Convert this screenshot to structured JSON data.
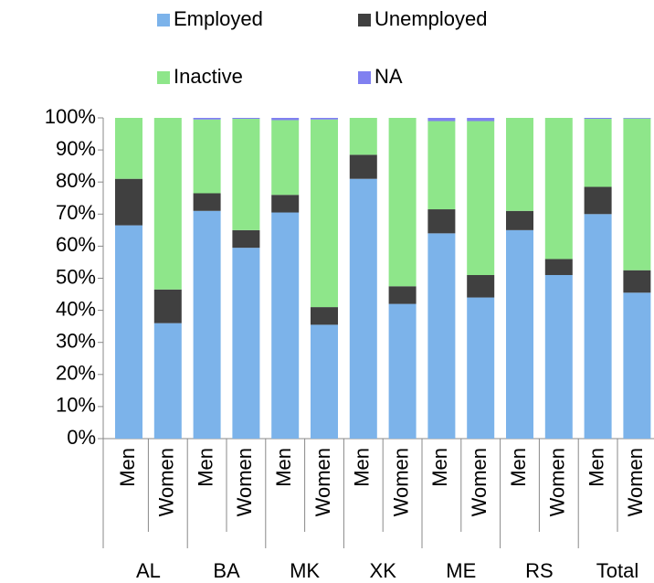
{
  "chart_data": {
    "type": "stacked_bar",
    "categories": [
      "Men",
      "Women",
      "Men",
      "Women",
      "Men",
      "Women",
      "Men",
      "Women",
      "Men",
      "Women",
      "Men",
      "Women",
      "Men",
      "Women"
    ],
    "groups": [
      "AL",
      "BA",
      "MK",
      "XK",
      "ME",
      "RS",
      "Total"
    ],
    "series": [
      {
        "name": "Employed",
        "color": "#7cb3ea",
        "values": [
          66.5,
          36,
          71,
          59.5,
          70.5,
          35.5,
          81,
          42,
          64,
          44,
          65,
          51,
          70,
          45.5
        ]
      },
      {
        "name": "Unemployed",
        "color": "#404040",
        "values": [
          14.5,
          10.5,
          5.5,
          5.5,
          5.5,
          5.5,
          7.5,
          5.5,
          7.5,
          7,
          6,
          5,
          8.5,
          7
        ]
      },
      {
        "name": "Inactive",
        "color": "#8ee68a",
        "values": [
          19,
          53.5,
          23,
          34.7,
          23.3,
          58.5,
          11.5,
          52.5,
          27.5,
          48,
          29,
          44,
          21.2,
          47.3
        ]
      },
      {
        "name": "NA",
        "color": "#8080f0",
        "values": [
          0,
          0,
          0.5,
          0.3,
          0.7,
          0.5,
          0,
          0,
          1,
          1,
          0,
          0,
          0.3,
          0.2
        ]
      }
    ],
    "ylim": [
      0,
      100
    ],
    "yticks": [
      {
        "value": 0,
        "label": "0%"
      },
      {
        "value": 10,
        "label": "10%"
      },
      {
        "value": 20,
        "label": "20%"
      },
      {
        "value": 30,
        "label": "30%"
      },
      {
        "value": 40,
        "label": "40%"
      },
      {
        "value": 50,
        "label": "50%"
      },
      {
        "value": 60,
        "label": "60%"
      },
      {
        "value": 70,
        "label": "70%"
      },
      {
        "value": 80,
        "label": "80%"
      },
      {
        "value": 90,
        "label": "90%"
      },
      {
        "value": 100,
        "label": "100%"
      }
    ],
    "grid": false
  }
}
